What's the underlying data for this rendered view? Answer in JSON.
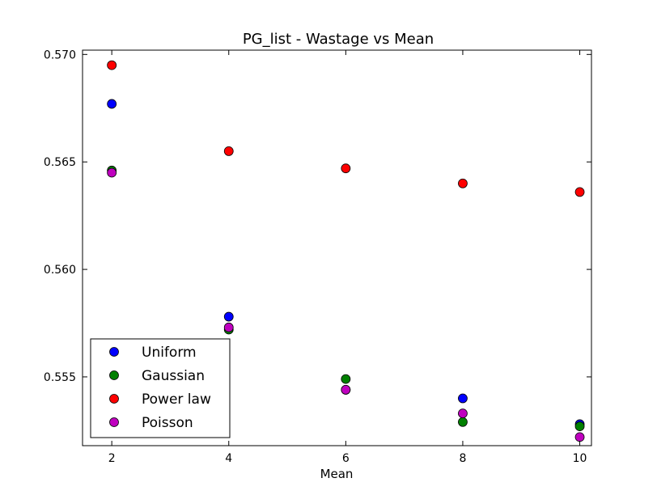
{
  "chart_data": {
    "type": "scatter",
    "title": "PG_list - Wastage vs Mean",
    "xlabel": "Mean",
    "ylabel": "",
    "xlim": [
      1.5,
      10.2
    ],
    "ylim": [
      0.5518,
      0.5702
    ],
    "xticks": [
      2,
      4,
      6,
      8,
      10
    ],
    "xtick_labels": [
      "2",
      "4",
      "6",
      "8",
      "10"
    ],
    "yticks": [
      0.555,
      0.56,
      0.565,
      0.57
    ],
    "ytick_labels": [
      "0.555",
      "0.560",
      "0.565",
      "0.570"
    ],
    "grid": false,
    "legend_position": "lower-left",
    "series": [
      {
        "name": "Uniform",
        "color": "#0000ff",
        "x": [
          2,
          4,
          6,
          8,
          10
        ],
        "y": [
          0.5677,
          0.5578,
          0.5544,
          0.554,
          0.5528
        ]
      },
      {
        "name": "Gaussian",
        "color": "#008000",
        "x": [
          2,
          4,
          6,
          8,
          10
        ],
        "y": [
          0.5646,
          0.5572,
          0.5549,
          0.5529,
          0.5527
        ]
      },
      {
        "name": "Power law",
        "color": "#ff0000",
        "x": [
          2,
          4,
          6,
          8,
          10
        ],
        "y": [
          0.5695,
          0.5655,
          0.5647,
          0.564,
          0.5636
        ]
      },
      {
        "name": "Poisson",
        "color": "#bf00bf",
        "x": [
          2,
          4,
          6,
          8,
          10
        ],
        "y": [
          0.5645,
          0.5573,
          0.5544,
          0.5533,
          0.5522
        ]
      }
    ]
  }
}
